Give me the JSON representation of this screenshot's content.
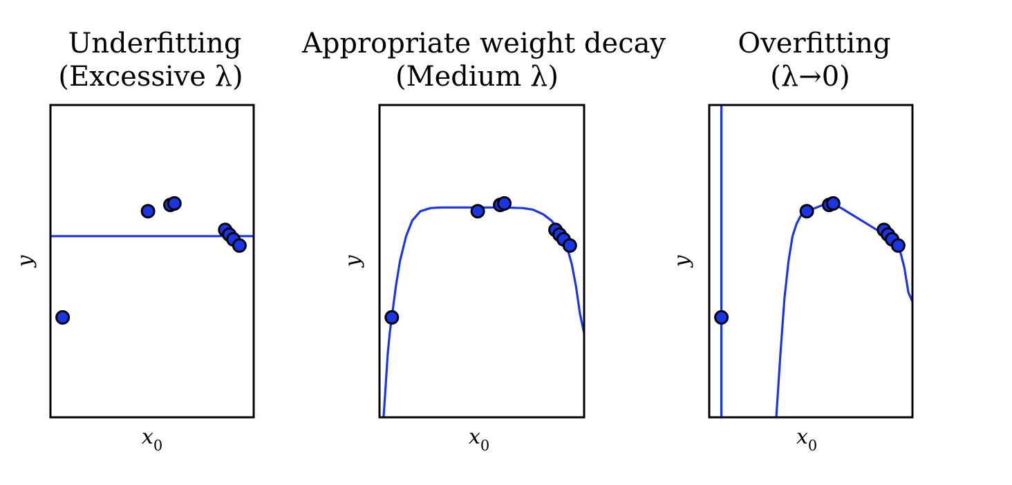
{
  "colors": {
    "line": "#1a35e6",
    "point_fill": "#1a35e6",
    "point_edge": "#000000",
    "frame": "#000000"
  },
  "chart_data": [
    {
      "type": "scatter",
      "title_lines": [
        "Underfitting",
        "(Excessive λ)"
      ],
      "xlabel": "x",
      "xlabel_sub": "0",
      "ylabel": "y",
      "xlim": [
        0,
        1
      ],
      "ylim": [
        0,
        1
      ],
      "grid": false,
      "points": [
        {
          "x": 0.06,
          "y": 0.32
        },
        {
          "x": 0.48,
          "y": 0.66
        },
        {
          "x": 0.59,
          "y": 0.68
        },
        {
          "x": 0.61,
          "y": 0.685
        },
        {
          "x": 0.86,
          "y": 0.6
        },
        {
          "x": 0.88,
          "y": 0.585
        },
        {
          "x": 0.9,
          "y": 0.57
        },
        {
          "x": 0.93,
          "y": 0.55
        }
      ],
      "fit_curve": {
        "x": [
          0.0,
          1.0
        ],
        "y": [
          0.58,
          0.58
        ]
      }
    },
    {
      "type": "scatter",
      "title_lines": [
        "Appropriate weight decay",
        "(Medium λ)"
      ],
      "xlabel": "x",
      "xlabel_sub": "0",
      "ylabel": "y",
      "xlim": [
        0,
        1
      ],
      "ylim": [
        0,
        1
      ],
      "grid": false,
      "points": [
        {
          "x": 0.06,
          "y": 0.32
        },
        {
          "x": 0.48,
          "y": 0.66
        },
        {
          "x": 0.59,
          "y": 0.68
        },
        {
          "x": 0.61,
          "y": 0.685
        },
        {
          "x": 0.86,
          "y": 0.6
        },
        {
          "x": 0.88,
          "y": 0.585
        },
        {
          "x": 0.9,
          "y": 0.57
        },
        {
          "x": 0.93,
          "y": 0.55
        }
      ],
      "fit_curve": {
        "x": [
          0.02,
          0.03,
          0.04,
          0.05,
          0.06,
          0.08,
          0.1,
          0.13,
          0.16,
          0.2,
          0.25,
          0.3,
          0.4,
          0.5,
          0.6,
          0.7,
          0.75,
          0.8,
          0.84,
          0.88,
          0.91,
          0.94,
          0.96,
          0.98,
          1.0
        ],
        "y": [
          0.0,
          0.1,
          0.2,
          0.27,
          0.32,
          0.42,
          0.5,
          0.58,
          0.63,
          0.66,
          0.67,
          0.672,
          0.672,
          0.672,
          0.672,
          0.67,
          0.665,
          0.65,
          0.63,
          0.6,
          0.56,
          0.49,
          0.42,
          0.33,
          0.27
        ]
      }
    },
    {
      "type": "scatter",
      "title_lines": [
        "Overfitting",
        "(λ→0)"
      ],
      "xlabel": "x",
      "xlabel_sub": "0",
      "ylabel": "y",
      "xlim": [
        0,
        1
      ],
      "ylim": [
        0,
        1
      ],
      "grid": false,
      "points": [
        {
          "x": 0.06,
          "y": 0.32
        },
        {
          "x": 0.48,
          "y": 0.66
        },
        {
          "x": 0.59,
          "y": 0.68
        },
        {
          "x": 0.61,
          "y": 0.685
        },
        {
          "x": 0.86,
          "y": 0.6
        },
        {
          "x": 0.88,
          "y": 0.585
        },
        {
          "x": 0.9,
          "y": 0.57
        },
        {
          "x": 0.93,
          "y": 0.55
        }
      ],
      "fit_curve_segments": [
        {
          "x": [
            0.06,
            0.06
          ],
          "y": [
            0.0,
            1.0
          ]
        },
        {
          "x": [
            0.33,
            0.35,
            0.37,
            0.39,
            0.41,
            0.43,
            0.45,
            0.48,
            0.52,
            0.56,
            0.6,
            0.65,
            0.7,
            0.75,
            0.8,
            0.85,
            0.88,
            0.91,
            0.94,
            0.96,
            0.98,
            1.0
          ],
          "y": [
            0.0,
            0.2,
            0.38,
            0.5,
            0.58,
            0.62,
            0.645,
            0.66,
            0.67,
            0.68,
            0.685,
            0.67,
            0.65,
            0.63,
            0.61,
            0.59,
            0.58,
            0.56,
            0.53,
            0.48,
            0.4,
            0.37
          ]
        }
      ]
    }
  ]
}
